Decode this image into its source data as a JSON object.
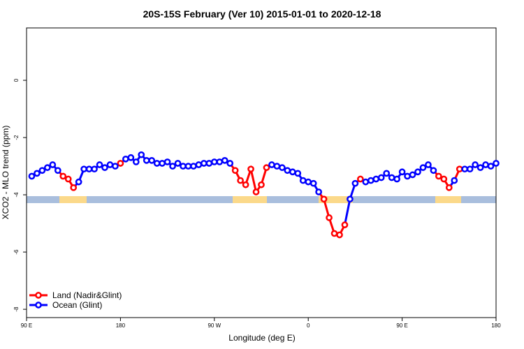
{
  "chart_data": {
    "type": "line",
    "title": "20S-15S February (Ver 10)   2015-01-01 to 2020-12-18",
    "x_label": "Longitude (deg E)",
    "y_label": "XCO2 - MLO trend (ppm)",
    "x": [
      95,
      100,
      105,
      110,
      115,
      120,
      125,
      130,
      135,
      140,
      145,
      150,
      155,
      160,
      165,
      170,
      175,
      180,
      185,
      190,
      195,
      200,
      205,
      210,
      215,
      220,
      225,
      230,
      235,
      240,
      245,
      250,
      255,
      260,
      265,
      270,
      275,
      280,
      285,
      290,
      295,
      300,
      305,
      310,
      315,
      320,
      325,
      330,
      335,
      340,
      345,
      350,
      355,
      360,
      365,
      370,
      375,
      380,
      385,
      390,
      395,
      400,
      405,
      410,
      415,
      420,
      425,
      430,
      435,
      440,
      445,
      450,
      455,
      460,
      465,
      470,
      475,
      480,
      485,
      490,
      495,
      500,
      505,
      510,
      515,
      520,
      525,
      530,
      535,
      540
    ],
    "series": [
      {
        "name": "Land (Nadir&Glint)",
        "color": "#ff0000",
        "values": [
          null,
          null,
          null,
          null,
          null,
          null,
          -3.35,
          -3.45,
          -3.75,
          null,
          null,
          null,
          null,
          null,
          null,
          null,
          null,
          -2.9,
          null,
          null,
          null,
          null,
          null,
          null,
          null,
          null,
          null,
          null,
          null,
          null,
          null,
          null,
          null,
          null,
          null,
          null,
          null,
          null,
          null,
          -3.15,
          -3.5,
          -3.65,
          -3.1,
          -3.9,
          -3.65,
          -3.05,
          null,
          null,
          null,
          null,
          null,
          null,
          null,
          null,
          null,
          null,
          -4.15,
          -4.8,
          -5.35,
          -5.4,
          -5.05,
          null,
          null,
          -3.45,
          null,
          null,
          null,
          null,
          null,
          null,
          null,
          null,
          null,
          null,
          null,
          null,
          null,
          null,
          -3.35,
          -3.45,
          -3.75,
          null,
          -3.1,
          null,
          null,
          null,
          null,
          null,
          null,
          null
        ]
      },
      {
        "name": "Ocean (Glint)",
        "color": "#0000ff",
        "values": [
          -3.35,
          -3.25,
          -3.15,
          -3.05,
          -2.95,
          -3.15,
          null,
          null,
          null,
          -3.55,
          -3.1,
          -3.1,
          -3.1,
          -2.95,
          -3.05,
          -2.95,
          -3.0,
          null,
          -2.75,
          -2.7,
          -2.85,
          -2.6,
          -2.8,
          -2.8,
          -2.9,
          -2.9,
          -2.85,
          -3.0,
          -2.9,
          -3.0,
          -3.0,
          -3.0,
          -2.95,
          -2.9,
          -2.9,
          -2.85,
          -2.85,
          -2.8,
          -2.9,
          null,
          null,
          null,
          null,
          null,
          null,
          null,
          -2.95,
          -3.0,
          -3.05,
          -3.15,
          -3.2,
          -3.25,
          -3.5,
          -3.55,
          -3.6,
          -3.9,
          null,
          null,
          null,
          null,
          null,
          -4.15,
          -3.6,
          null,
          -3.55,
          -3.5,
          -3.45,
          -3.4,
          -3.25,
          -3.4,
          -3.45,
          -3.2,
          -3.35,
          -3.3,
          -3.2,
          -3.05,
          -2.95,
          -3.15,
          null,
          null,
          null,
          -3.5,
          null,
          -3.1,
          -3.1,
          -2.95,
          -3.05,
          -2.95,
          -3.0,
          -2.9
        ]
      }
    ],
    "xlim": [
      90,
      540
    ],
    "xticks": [
      {
        "value": 90,
        "label": "90 E"
      },
      180,
      {
        "value": 270,
        "label": "90 W"
      },
      {
        "value": 360,
        "label": "0"
      },
      {
        "value": 450,
        "label": "90 E"
      },
      {
        "value": 540,
        "label": "180"
      }
    ],
    "ylim": [
      -8.29,
      1.83
    ],
    "yticks": [
      0,
      -2,
      -4,
      -6,
      -8
    ],
    "legend": "bottom-left"
  }
}
